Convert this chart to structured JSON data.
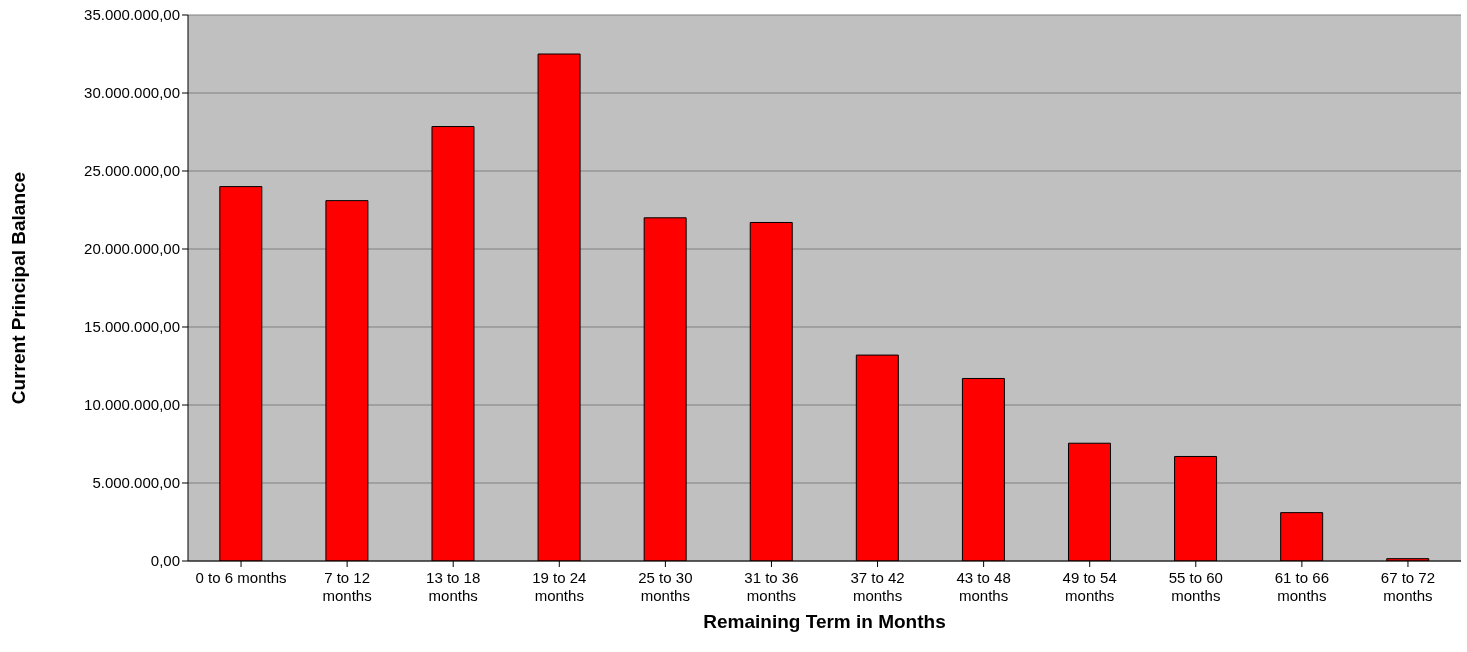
{
  "chart_data": {
    "type": "bar",
    "xlabel": "Remaining Term in Months",
    "ylabel": "Current Principal Balance",
    "categories": [
      "0 to 6 months",
      "7 to 12 months",
      "13 to 18 months",
      "19 to 24 months",
      "25 to 30 months",
      "31 to 36 months",
      "37 to 42 months",
      "43 to 48 months",
      "49 to 54 months",
      "55 to 60 months",
      "61 to 66 months",
      "67 to 72 months"
    ],
    "values": [
      24000000,
      23100000,
      27850000,
      32500000,
      22000000,
      21700000,
      13200000,
      11700000,
      7550000,
      6700000,
      3100000,
      150000
    ],
    "color": "#ff0000",
    "ylim": [
      0,
      35000000
    ],
    "yticks": [
      {
        "value": 0,
        "label": "0,00"
      },
      {
        "value": 5000000,
        "label": "5.000.000,00"
      },
      {
        "value": 10000000,
        "label": "10.000.000,00"
      },
      {
        "value": 15000000,
        "label": "15.000.000,00"
      },
      {
        "value": 20000000,
        "label": "20.000.000,00"
      },
      {
        "value": 25000000,
        "label": "25.000.000,00"
      },
      {
        "value": 30000000,
        "label": "30.000.000,00"
      },
      {
        "value": 35000000,
        "label": "35.000.000,00"
      }
    ],
    "grid": "y",
    "legend": false
  }
}
